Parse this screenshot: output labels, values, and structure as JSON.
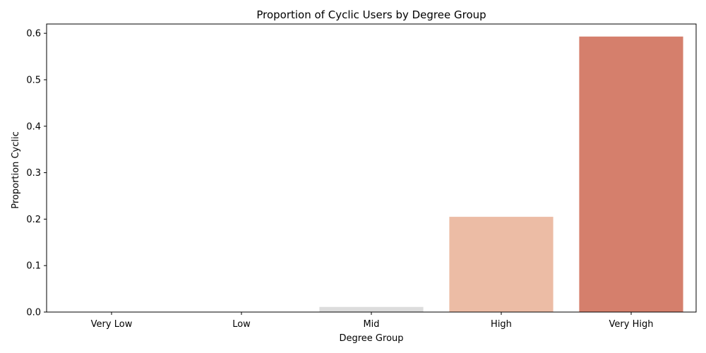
{
  "chart_data": {
    "type": "bar",
    "title": "Proportion of Cyclic Users by Degree Group",
    "xlabel": "Degree Group",
    "ylabel": "Proportion Cyclic",
    "categories": [
      "Very Low",
      "Low",
      "Mid",
      "High",
      "Very High"
    ],
    "values": [
      0.0,
      0.0,
      0.011,
      0.205,
      0.593
    ],
    "colors": [
      "#6c8fdc",
      "#a9c4f5",
      "#dcdcdc",
      "#ecbca5",
      "#d57f6c"
    ],
    "ylim": [
      0,
      0.62
    ],
    "yticks": [
      0.0,
      0.1,
      0.2,
      0.3,
      0.4,
      0.5,
      0.6
    ],
    "ytick_labels": [
      "0.0",
      "0.1",
      "0.2",
      "0.3",
      "0.4",
      "0.5",
      "0.6"
    ],
    "grid": false,
    "legend": "none"
  }
}
